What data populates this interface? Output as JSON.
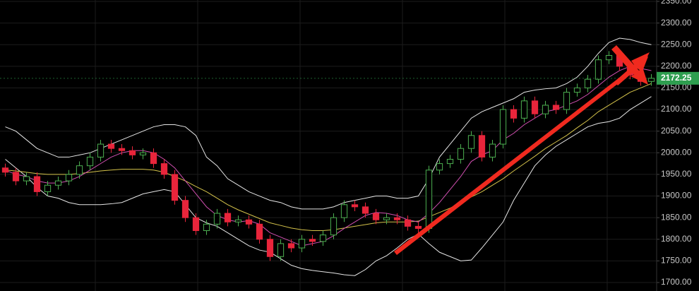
{
  "chart_data": {
    "type": "candlestick",
    "up_color": "#4caf50",
    "down_color": "#e8253b",
    "open": [
      1965,
      1955,
      1935,
      1945,
      1910,
      1925,
      1935,
      1950,
      1970,
      1990,
      2020,
      2010,
      2005,
      1995,
      2000,
      1975,
      1950,
      1890,
      1850,
      1820,
      1835,
      1860,
      1840,
      1845,
      1835,
      1800,
      1760,
      1790,
      1780,
      1800,
      1795,
      1810,
      1850,
      1880,
      1875,
      1860,
      1845,
      1850,
      1845,
      1830,
      1825,
      1960,
      1975,
      1985,
      2010,
      2040,
      1990,
      2020,
      2100,
      2080,
      2120,
      2090,
      2110,
      2100,
      2140,
      2150,
      2170,
      2215,
      2225,
      2200,
      2180,
      2165
    ],
    "high": [
      1975,
      1965,
      1955,
      1955,
      1935,
      1945,
      1960,
      1980,
      2000,
      2030,
      2030,
      2020,
      2015,
      2010,
      2010,
      1985,
      1960,
      1900,
      1860,
      1845,
      1870,
      1870,
      1855,
      1855,
      1845,
      1810,
      1800,
      1800,
      1810,
      1810,
      1820,
      1860,
      1890,
      1890,
      1885,
      1870,
      1860,
      1860,
      1855,
      1840,
      1970,
      1985,
      1995,
      2020,
      2050,
      2050,
      2030,
      2110,
      2110,
      2130,
      2130,
      2120,
      2120,
      2150,
      2160,
      2180,
      2225,
      2235,
      2235,
      2210,
      2190,
      2182
    ],
    "low": [
      1945,
      1925,
      1925,
      1900,
      1900,
      1915,
      1925,
      1940,
      1960,
      1980,
      2000,
      1995,
      1985,
      1985,
      1965,
      1940,
      1880,
      1840,
      1810,
      1810,
      1825,
      1830,
      1830,
      1825,
      1790,
      1750,
      1750,
      1770,
      1770,
      1785,
      1785,
      1800,
      1840,
      1865,
      1850,
      1835,
      1835,
      1835,
      1820,
      1815,
      1815,
      1950,
      1965,
      1975,
      2000,
      1980,
      1980,
      2010,
      2070,
      2070,
      2080,
      2080,
      2090,
      2090,
      2130,
      2140,
      2160,
      2205,
      2190,
      2170,
      2155,
      2155
    ],
    "close": [
      1955,
      1935,
      1945,
      1910,
      1925,
      1935,
      1950,
      1970,
      1990,
      2020,
      2010,
      2005,
      1995,
      2000,
      1975,
      1950,
      1890,
      1850,
      1820,
      1835,
      1860,
      1840,
      1845,
      1835,
      1800,
      1760,
      1790,
      1780,
      1800,
      1795,
      1810,
      1850,
      1880,
      1875,
      1860,
      1845,
      1850,
      1845,
      1830,
      1825,
      1960,
      1975,
      1985,
      2010,
      2040,
      1990,
      2020,
      2100,
      2080,
      2120,
      2090,
      2110,
      2100,
      2140,
      2150,
      2170,
      2215,
      2225,
      2200,
      2180,
      2165,
      2172.25
    ],
    "series": [
      {
        "color": "#e6e6e6",
        "values": [
          2060,
          2050,
          2030,
          2010,
          2000,
          1990,
          1990,
          1995,
          2000,
          2010,
          2020,
          2030,
          2040,
          2050,
          2060,
          2065,
          2065,
          2060,
          2040,
          1990,
          1970,
          1940,
          1925,
          1910,
          1900,
          1890,
          1885,
          1875,
          1870,
          1870,
          1870,
          1875,
          1885,
          1890,
          1895,
          1900,
          1900,
          1895,
          1895,
          1900,
          1940,
          1990,
          2020,
          2050,
          2080,
          2095,
          2105,
          2115,
          2125,
          2140,
          2145,
          2148,
          2150,
          2160,
          2175,
          2200,
          2230,
          2255,
          2265,
          2262,
          2255,
          2250
        ]
      },
      {
        "color": "#e6e6e6",
        "values": [
          1985,
          1965,
          1945,
          1920,
          1900,
          1895,
          1885,
          1880,
          1880,
          1880,
          1882,
          1885,
          1895,
          1905,
          1910,
          1915,
          1910,
          1880,
          1850,
          1838,
          1830,
          1815,
          1800,
          1785,
          1775,
          1770,
          1755,
          1740,
          1732,
          1728,
          1725,
          1722,
          1718,
          1716,
          1730,
          1750,
          1762,
          1780,
          1800,
          1812,
          1790,
          1770,
          1760,
          1750,
          1752,
          1780,
          1810,
          1840,
          1890,
          1930,
          1970,
          1995,
          2015,
          2030,
          2045,
          2060,
          2068,
          2072,
          2080,
          2100,
          2115,
          2130
        ]
      },
      {
        "color": "#d4c24a",
        "values": [
          1960,
          1958,
          1955,
          1952,
          1950,
          1950,
          1950,
          1952,
          1955,
          1958,
          1960,
          1962,
          1962,
          1962,
          1960,
          1955,
          1945,
          1935,
          1922,
          1910,
          1895,
          1880,
          1868,
          1858,
          1848,
          1838,
          1832,
          1826,
          1822,
          1820,
          1820,
          1822,
          1826,
          1830,
          1834,
          1838,
          1840,
          1840,
          1840,
          1842,
          1852,
          1862,
          1872,
          1885,
          1898,
          1910,
          1925,
          1940,
          1958,
          1975,
          1992,
          2010,
          2025,
          2040,
          2058,
          2075,
          2095,
          2110,
          2125,
          2140,
          2150,
          2160
        ]
      },
      {
        "color": "#d04fb0",
        "values": [
          1960,
          1950,
          1945,
          1935,
          1930,
          1930,
          1935,
          1945,
          1960,
          1975,
          1990,
          2000,
          2005,
          2005,
          2000,
          1985,
          1965,
          1935,
          1905,
          1875,
          1855,
          1845,
          1840,
          1843,
          1835,
          1815,
          1805,
          1795,
          1785,
          1790,
          1795,
          1808,
          1825,
          1840,
          1855,
          1862,
          1860,
          1855,
          1845,
          1840,
          1860,
          1885,
          1915,
          1945,
          1980,
          1995,
          2005,
          2030,
          2045,
          2065,
          2080,
          2095,
          2100,
          2110,
          2120,
          2135,
          2155,
          2175,
          2190,
          2200,
          2195,
          2190
        ]
      }
    ],
    "ylim": [
      1700,
      2350
    ],
    "yticks": [
      {
        "value": 1700,
        "label": "1700.00"
      },
      {
        "value": 1750,
        "label": "1750.00"
      },
      {
        "value": 1800,
        "label": "1800.00"
      },
      {
        "value": 1850,
        "label": "1850.00"
      },
      {
        "value": 1900,
        "label": "1900.00"
      },
      {
        "value": 1950,
        "label": "1950.00"
      },
      {
        "value": 2000,
        "label": "2000.00"
      },
      {
        "value": 2050,
        "label": "2050.00"
      },
      {
        "value": 2100,
        "label": "2100.00"
      },
      {
        "value": 2150,
        "label": "2150.00"
      },
      {
        "value": 2200,
        "label": "2200.00"
      },
      {
        "value": 2250,
        "label": "2250.00"
      },
      {
        "value": 2300,
        "label": "2300.00"
      },
      {
        "value": 2350,
        "label": "2350.00"
      }
    ],
    "grid": true,
    "last_price": 2172.25,
    "last_price_color": "#2e9e4f"
  }
}
